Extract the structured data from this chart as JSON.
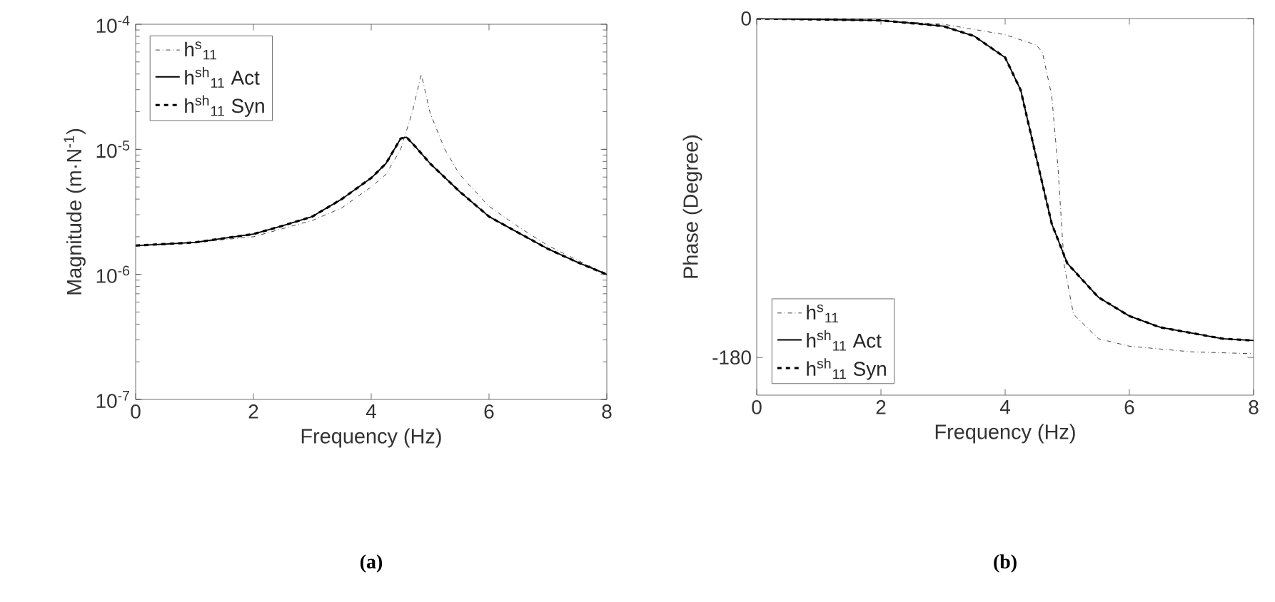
{
  "chart_data": [
    {
      "type": "line",
      "xlabel": "Frequency (Hz)",
      "ylabel": "Magnitude (m·N$^{-1}$)",
      "log": true,
      "legend": "top left",
      "grid": false,
      "xlim": [
        0,
        8
      ],
      "xticks": [
        0,
        2,
        4,
        6,
        8
      ],
      "ylim": [
        1e-07,
        0.0001
      ],
      "yticks": [
        {
          "value": 1e-07,
          "label": "10$^{-7}$"
        },
        {
          "value": 1e-06,
          "label": "10$^{-6}$"
        },
        {
          "value": 1e-05,
          "label": "10$^{-5}$"
        },
        {
          "value": 0.0001,
          "label": "10$^{-4}$"
        }
      ],
      "annotations": [
        "(a)"
      ],
      "series": [
        {
          "name": "h$^{s}$$_{11}$",
          "color": "#444444",
          "line_style": "dashdot",
          "x": [
            0,
            1,
            2,
            3,
            3.5,
            4,
            4.25,
            4.5,
            4.7,
            4.85,
            5,
            5.25,
            5.5,
            6,
            6.5,
            7,
            7.5,
            8
          ],
          "values": [
            1.7e-06,
            1.8e-06,
            2e-06,
            2.7e-06,
            3.4e-06,
            5e-06,
            6.3e-06,
            1e-05,
            2e-05,
            4e-05,
            1.95e-05,
            1e-05,
            6.3e-06,
            3.5e-06,
            2.4e-06,
            1.7e-06,
            1.3e-06,
            1e-06
          ]
        },
        {
          "name": "h$^{sh}$$_{11}$ Act",
          "color": "#000000",
          "line_style": "solid",
          "x": [
            0,
            1,
            2,
            2.5,
            3,
            3.5,
            4,
            4.25,
            4.5,
            4.6,
            4.75,
            5,
            5.5,
            6,
            6.5,
            7,
            7.5,
            8
          ],
          "values": [
            1.7e-06,
            1.8e-06,
            2.1e-06,
            2.45e-06,
            2.9e-06,
            4e-06,
            5.9e-06,
            7.7e-06,
            1.22e-05,
            1.25e-05,
            1.05e-05,
            7.7e-06,
            4.6e-06,
            2.9e-06,
            2.15e-06,
            1.6e-06,
            1.25e-06,
            1e-06
          ]
        },
        {
          "name": "h$^{sh}$$_{11}$ Syn",
          "color": "#000000",
          "line_style": "dashed",
          "x": [
            0,
            1,
            2,
            2.5,
            3,
            3.5,
            4,
            4.25,
            4.5,
            4.6,
            4.75,
            5,
            5.5,
            6,
            6.5,
            7,
            7.5,
            8
          ],
          "values": [
            1.7e-06,
            1.8e-06,
            2.1e-06,
            2.45e-06,
            2.9e-06,
            4e-06,
            5.9e-06,
            7.7e-06,
            1.22e-05,
            1.25e-05,
            1.05e-05,
            7.7e-06,
            4.6e-06,
            2.9e-06,
            2.15e-06,
            1.6e-06,
            1.25e-06,
            1e-06
          ]
        }
      ]
    },
    {
      "type": "line",
      "xlabel": "Frequency (Hz)",
      "ylabel": "Phase (Degree)",
      "legend": "bottom left",
      "grid": false,
      "xlim": [
        0,
        8
      ],
      "xticks": [
        0,
        2,
        4,
        6,
        8
      ],
      "ylim": [
        -200,
        0
      ],
      "yticks": [
        -180,
        0
      ],
      "annotations": [
        "(b)"
      ],
      "series": [
        {
          "name": "h$^{s}$$_{11}$",
          "color": "#444444",
          "line_style": "dashdot",
          "x": [
            0,
            2,
            3,
            4,
            4.5,
            4.6,
            4.75,
            4.85,
            4.95,
            5.1,
            5.5,
            6,
            7,
            8
          ],
          "values": [
            0,
            -1,
            -3,
            -8.6,
            -14,
            -18,
            -41,
            -79,
            -131,
            -157,
            -170,
            -174,
            -177,
            -178
          ]
        },
        {
          "name": "h$^{sh}$$_{11}$ Act",
          "color": "#000000",
          "line_style": "solid",
          "x": [
            0,
            2,
            3,
            3.5,
            4,
            4.25,
            4.5,
            4.75,
            5,
            5.5,
            6,
            6.5,
            7,
            7.5,
            8
          ],
          "values": [
            0,
            -1,
            -4,
            -9.3,
            -20.7,
            -38,
            -73.6,
            -109,
            -130,
            -148,
            -158,
            -164,
            -167,
            -170,
            -171
          ]
        },
        {
          "name": "h$^{sh}$$_{11}$ Syn",
          "color": "#000000",
          "line_style": "dashed",
          "x": [
            0,
            2,
            3,
            3.5,
            4,
            4.25,
            4.5,
            4.75,
            5,
            5.5,
            6,
            6.5,
            7,
            7.5,
            8
          ],
          "values": [
            0,
            -1,
            -4,
            -9.3,
            -20.7,
            -38,
            -73.6,
            -109,
            -130,
            -148,
            -158,
            -164,
            -167,
            -170,
            -171
          ]
        }
      ]
    }
  ]
}
